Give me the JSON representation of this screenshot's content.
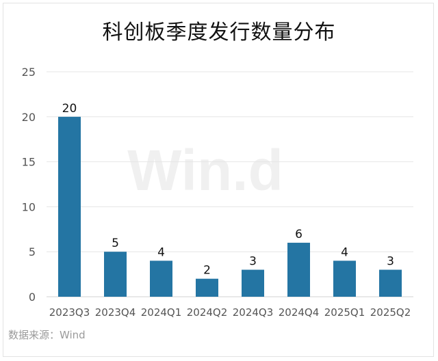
{
  "chart_data": {
    "type": "bar",
    "title": "科创板季度发行数量分布",
    "categories": [
      "2023Q3",
      "2023Q4",
      "2024Q1",
      "2024Q2",
      "2024Q3",
      "2024Q4",
      "2025Q1",
      "2025Q2"
    ],
    "values": [
      20,
      5,
      4,
      2,
      3,
      6,
      4,
      3
    ],
    "ylim": [
      0,
      25
    ],
    "yticks": [
      0,
      5,
      10,
      15,
      20,
      25
    ],
    "grid": true,
    "bar_color": "#2475a3",
    "data_labels": true,
    "xlabel": "",
    "ylabel": ""
  },
  "watermark": "Win.d",
  "source": "数据来源：Wind"
}
